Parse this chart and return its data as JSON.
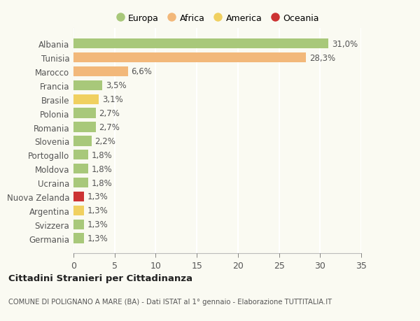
{
  "categories": [
    "Albania",
    "Tunisia",
    "Marocco",
    "Francia",
    "Brasile",
    "Polonia",
    "Romania",
    "Slovenia",
    "Portogallo",
    "Moldova",
    "Ucraina",
    "Nuova Zelanda",
    "Argentina",
    "Svizzera",
    "Germania"
  ],
  "values": [
    31.0,
    28.3,
    6.6,
    3.5,
    3.1,
    2.7,
    2.7,
    2.2,
    1.8,
    1.8,
    1.8,
    1.3,
    1.3,
    1.3,
    1.3
  ],
  "labels": [
    "31,0%",
    "28,3%",
    "6,6%",
    "3,5%",
    "3,1%",
    "2,7%",
    "2,7%",
    "2,2%",
    "1,8%",
    "1,8%",
    "1,8%",
    "1,3%",
    "1,3%",
    "1,3%",
    "1,3%"
  ],
  "colors": [
    "#a8c87a",
    "#f2b87a",
    "#f2b87a",
    "#a8c87a",
    "#f0d060",
    "#a8c87a",
    "#a8c87a",
    "#a8c87a",
    "#a8c87a",
    "#a8c87a",
    "#a8c87a",
    "#cc3333",
    "#f0d060",
    "#a8c87a",
    "#a8c87a"
  ],
  "legend": [
    {
      "label": "Europa",
      "color": "#a8c87a"
    },
    {
      "label": "Africa",
      "color": "#f2b87a"
    },
    {
      "label": "America",
      "color": "#f0d060"
    },
    {
      "label": "Oceania",
      "color": "#cc3333"
    }
  ],
  "title": "Cittadini Stranieri per Cittadinanza",
  "subtitle": "COMUNE DI POLIGNANO A MARE (BA) - Dati ISTAT al 1° gennaio - Elaborazione TUTTITALIA.IT",
  "xlim": [
    0,
    35
  ],
  "xticks": [
    0,
    5,
    10,
    15,
    20,
    25,
    30,
    35
  ],
  "background_color": "#fafaf2",
  "plot_bg_color": "#fafaf2",
  "grid_color": "#ffffff",
  "bar_height": 0.72,
  "label_fontsize": 8.5,
  "ytick_fontsize": 8.5,
  "xtick_fontsize": 9
}
